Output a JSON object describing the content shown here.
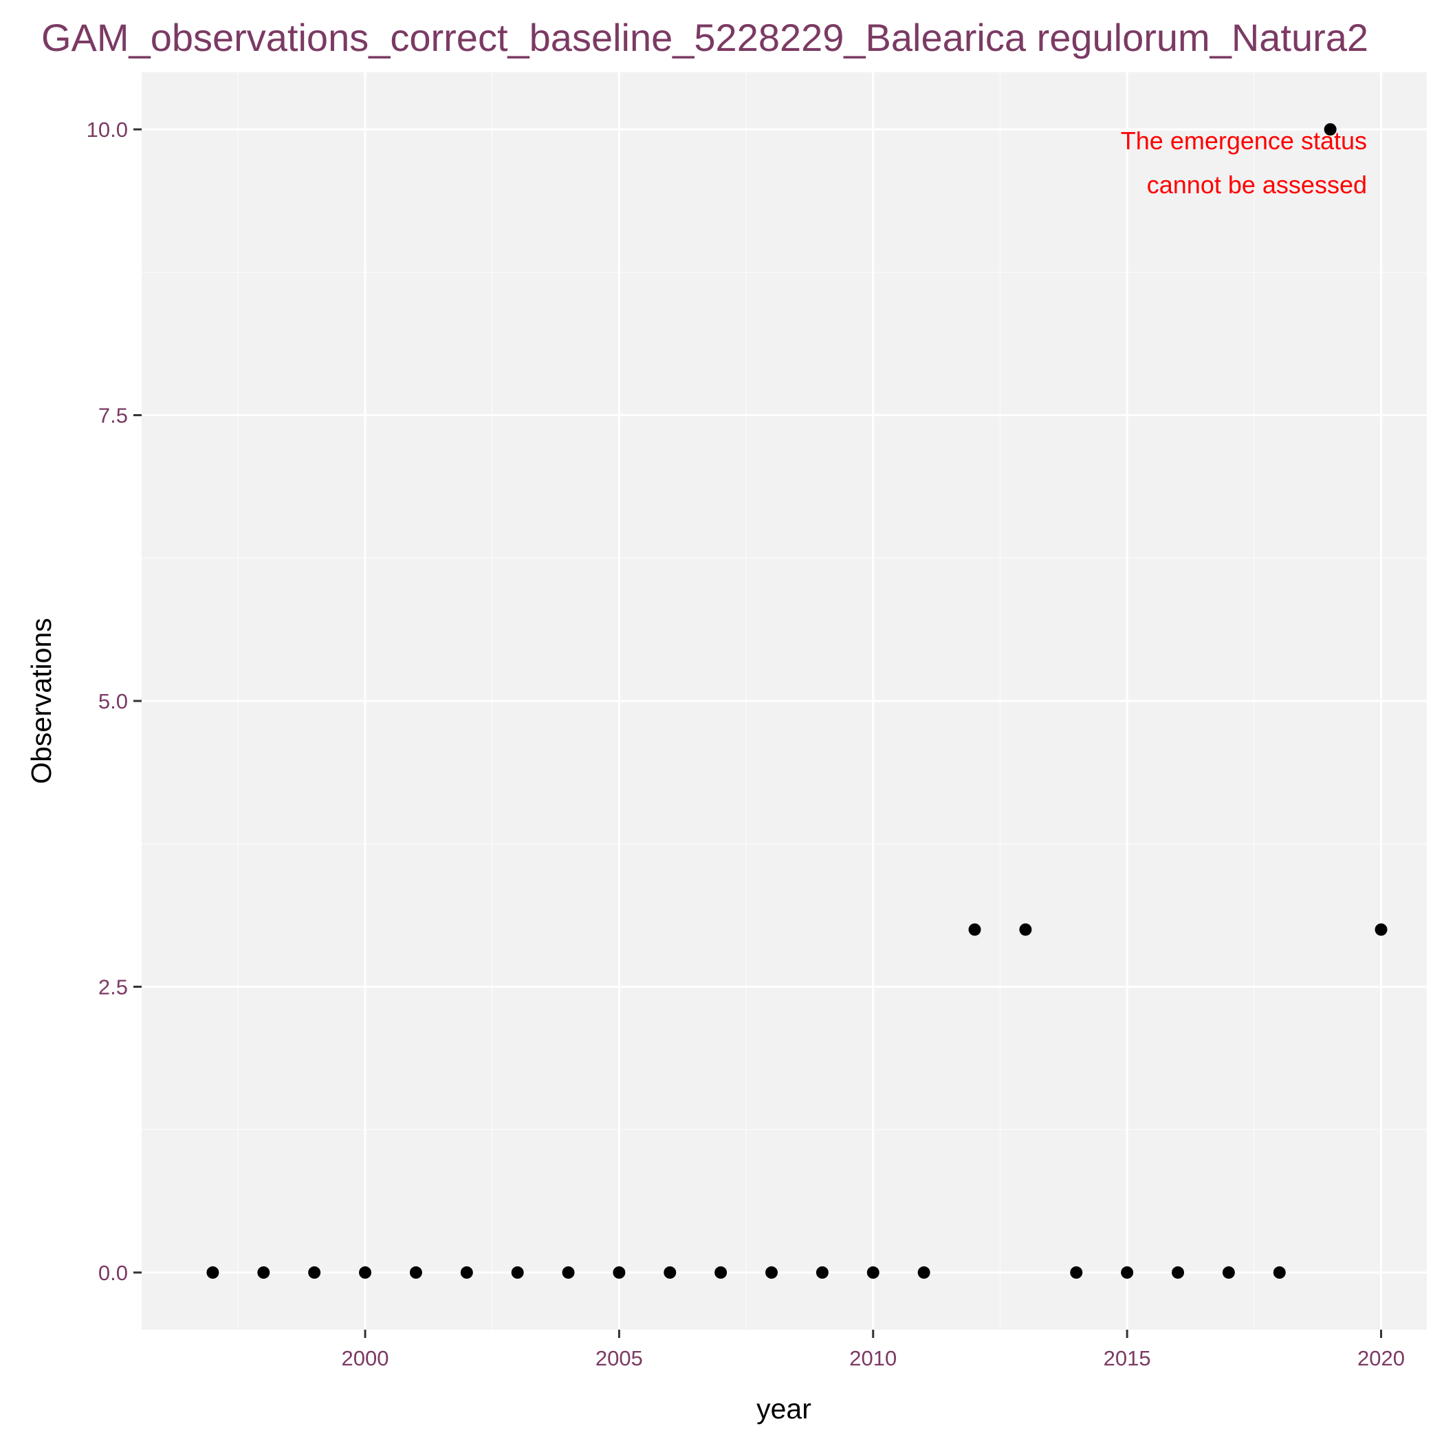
{
  "colors": {
    "title": "#7b3a63",
    "tick_labels": "#7b3a63",
    "axis_titles": "#000000",
    "panel_background": "#f2f2f2",
    "grid_major": "#ffffff",
    "grid_minor": "#fafafa",
    "points": "#000000",
    "annotation": "#ff0000"
  },
  "chart_data": {
    "type": "scatter",
    "title": "GAM_observations_correct_baseline_5228229_Balearica regulorum_Natura2",
    "xlabel": "year",
    "ylabel": "Observations",
    "xlim": [
      1995.6,
      2020.9
    ],
    "ylim": [
      -0.5,
      10.5
    ],
    "x_ticks": [
      2000,
      2005,
      2010,
      2015,
      2020
    ],
    "x_tick_labels": [
      "2000",
      "2005",
      "2010",
      "2015",
      "2020"
    ],
    "y_ticks": [
      0,
      2.5,
      5,
      7.5,
      10
    ],
    "y_tick_labels": [
      "0.0",
      "2.5",
      "5.0",
      "7.5",
      "10.0"
    ],
    "grid": true,
    "legend": "none",
    "x": [
      1997,
      1998,
      1999,
      2000,
      2001,
      2002,
      2003,
      2004,
      2005,
      2006,
      2007,
      2008,
      2009,
      2010,
      2011,
      2012,
      2013,
      2014,
      2015,
      2016,
      2017,
      2018,
      2019,
      2020
    ],
    "y": [
      0,
      0,
      0,
      0,
      0,
      0,
      0,
      0,
      0,
      0,
      0,
      0,
      0,
      0,
      0,
      3,
      3,
      0,
      0,
      0,
      0,
      0,
      10,
      3
    ],
    "annotation": {
      "lines": [
        "The emergence status",
        "cannot be assessed"
      ]
    }
  }
}
